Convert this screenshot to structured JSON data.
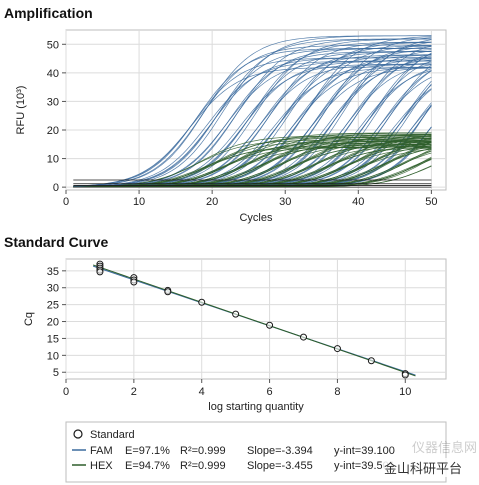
{
  "chart_data": [
    {
      "type": "line",
      "title": "Amplification",
      "xlabel": "Cycles",
      "ylabel": "RFU (10³)",
      "xlim": [
        0,
        52
      ],
      "ylim": [
        -1,
        55
      ],
      "x_ticks": [
        0,
        10,
        20,
        30,
        40,
        50
      ],
      "y_ticks": [
        0,
        10,
        20,
        30,
        40,
        50
      ],
      "grid": true,
      "series": [
        {
          "color": "#3a6a9e",
          "plateau_min": 42,
          "plateau_max": 53,
          "threshold_cycles": [
            9,
            10.5,
            12,
            13.5,
            15,
            16.5,
            18,
            19.5,
            21,
            22.5,
            24,
            25.5,
            27,
            28.5,
            30,
            31.5,
            33,
            34.5,
            36,
            37.5,
            39,
            40.5,
            42
          ]
        },
        {
          "color": "#2e5e2a",
          "plateau_min": 14,
          "plateau_max": 19,
          "threshold_cycles": [
            10,
            11.5,
            13,
            14.5,
            16,
            17.5,
            19,
            20.5,
            22,
            23.5,
            25,
            26.5,
            28,
            29.5,
            31,
            32.5,
            34,
            35.5,
            37,
            38.5,
            40,
            41.5
          ]
        }
      ]
    },
    {
      "type": "scatter",
      "title": "Standard Curve",
      "xlabel": "log starting quantity",
      "ylabel": "Cq",
      "xlim": [
        0,
        11.2
      ],
      "ylim": [
        3,
        38.5
      ],
      "x_ticks": [
        0,
        2,
        4,
        6,
        8,
        10
      ],
      "y_ticks": [
        5,
        10,
        15,
        20,
        25,
        30,
        35
      ],
      "grid": true,
      "points": [
        {
          "x": 1,
          "y": 37.0
        },
        {
          "x": 1,
          "y": 36.4
        },
        {
          "x": 1,
          "y": 35.8
        },
        {
          "x": 1,
          "y": 35.2
        },
        {
          "x": 1,
          "y": 34.7
        },
        {
          "x": 2,
          "y": 33.0
        },
        {
          "x": 2,
          "y": 32.3
        },
        {
          "x": 2,
          "y": 31.7
        },
        {
          "x": 3,
          "y": 29.2
        },
        {
          "x": 3,
          "y": 28.8
        },
        {
          "x": 4,
          "y": 25.7
        },
        {
          "x": 5,
          "y": 22.2
        },
        {
          "x": 6,
          "y": 18.9
        },
        {
          "x": 7,
          "y": 15.4
        },
        {
          "x": 8,
          "y": 12.0
        },
        {
          "x": 9,
          "y": 8.4
        },
        {
          "x": 10,
          "y": 4.6
        },
        {
          "x": 10,
          "y": 4.2
        }
      ],
      "fits": [
        {
          "name": "FAM",
          "color": "#3a6a9e",
          "slope": -3.394,
          "intercept": 39.1
        },
        {
          "name": "HEX",
          "color": "#2e5e2a",
          "slope": -3.455,
          "intercept": 39.5
        }
      ]
    }
  ],
  "legend": {
    "standard": "Standard",
    "fam": {
      "name": "FAM",
      "eff": "E=97.1%",
      "r2": "R²=0.999",
      "slope": "Slope=-3.394",
      "yint": "y-int=39.100"
    },
    "hex": {
      "name": "HEX",
      "eff": "E=94.7%",
      "r2": "R²=0.999",
      "slope": "Slope=-3.455",
      "yint": "y-int=39.501"
    }
  },
  "watermark": {
    "text1": "仪器信息网",
    "text2": "金山科研平台"
  }
}
